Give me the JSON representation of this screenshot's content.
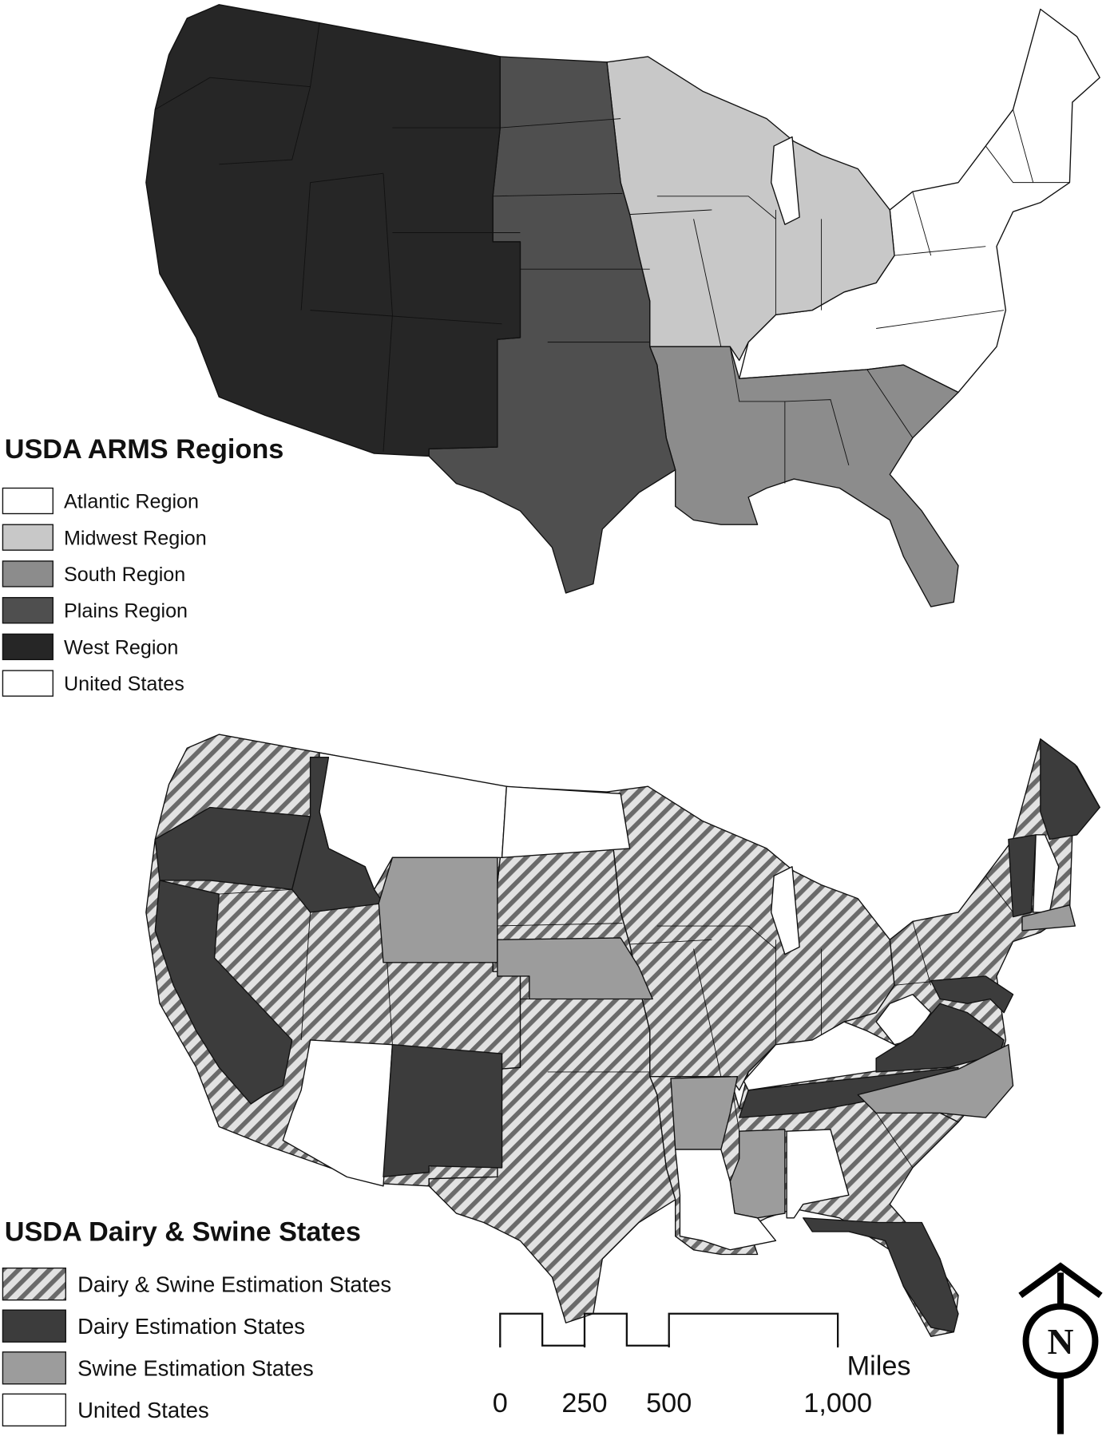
{
  "maps": [
    {
      "title": "USDA ARMS Regions",
      "legend": [
        {
          "label": "Atlantic Region",
          "fill": "#ffffff"
        },
        {
          "label": "Midwest Region",
          "fill": "#c8c8c8"
        },
        {
          "label": "South Region",
          "fill": "#8c8c8c"
        },
        {
          "label": "Plains Region",
          "fill": "#4f4f4f"
        },
        {
          "label": "West Region",
          "fill": "#262626"
        },
        {
          "label": "United States",
          "fill": "#ffffff"
        }
      ]
    },
    {
      "title": "USDA Dairy & Swine States",
      "legend": [
        {
          "label": "Dairy & Swine Estimation States",
          "fill": "hatched"
        },
        {
          "label": "Dairy Estimation States",
          "fill": "#3c3c3c"
        },
        {
          "label": "Swine Estimation States",
          "fill": "#9c9c9c"
        },
        {
          "label": "United States",
          "fill": "#ffffff"
        }
      ]
    }
  ],
  "scale_bar": {
    "unit": "Miles",
    "ticks": [
      0,
      250,
      500,
      {
        "value": 1000,
        "label": "1,000"
      }
    ]
  },
  "north_arrow": "N"
}
